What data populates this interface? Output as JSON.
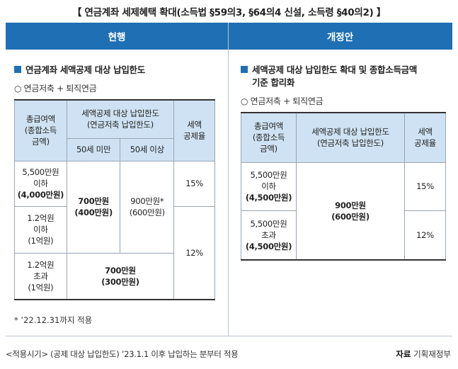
{
  "title": "【 연금계좌 세제혜택 확대(소득법 §59의3, §64의4 신설, 소득령 §40의2) 】",
  "header": {
    "left": "현행",
    "right": "개정안"
  },
  "left": {
    "heading": "연금계좌 세액공제 대상 납입한도",
    "sub": "○ 연금저축 + 퇴직연금",
    "table": {
      "h_income": [
        "총급여액",
        "(종합소득",
        "금액)"
      ],
      "h_limit": [
        "세액공제 대상 납입한도",
        "(연금저축 납입한도)"
      ],
      "h_under50": "50세 미만",
      "h_over50": "50세 이상",
      "h_rate": [
        "세액",
        "공제율"
      ],
      "r1_income": [
        "5,500만원",
        "이하",
        "(4,000만원)"
      ],
      "r2_income": [
        "1.2억원",
        "이하",
        "(1억원)"
      ],
      "r3_income": [
        "1.2억원",
        "초과",
        "(1억원)"
      ],
      "limit_under50_r12": [
        "700만원",
        "(400만원)"
      ],
      "limit_over50_r12": [
        "900만원*",
        "(600만원)"
      ],
      "limit_r3": [
        "700만원",
        "(300만원)"
      ],
      "rate_r1": "15%",
      "rate_r23": "12%"
    },
    "note": "* ’22.12.31까지 적용"
  },
  "right": {
    "heading": [
      "세액공제 대상 납입한도 확대 및 종합소득금액",
      "기준 합리화"
    ],
    "sub": "○ 연금저축 + 퇴직연금",
    "table": {
      "h_income": [
        "총급여액",
        "(종합소득",
        "금액)"
      ],
      "h_limit": [
        "세액공제 대상 납입한도",
        "(연금저축 납입한도)"
      ],
      "h_rate": [
        "세액",
        "공제율"
      ],
      "r1_income": [
        "5,500만원",
        "이하",
        "(4,500만원)"
      ],
      "r2_income": [
        "5,500만원",
        "초과",
        "(4,500만원)"
      ],
      "limit": [
        "900만원",
        "(600만원)"
      ],
      "rate_r1": "15%",
      "rate_r2": "12%"
    }
  },
  "footer": {
    "left": "<적용시기> (공제 대상 납입한도) ’23.1.1 이후 납입하는 분부터 적용",
    "right_label": "자료",
    "right_source": "기획재정부"
  }
}
